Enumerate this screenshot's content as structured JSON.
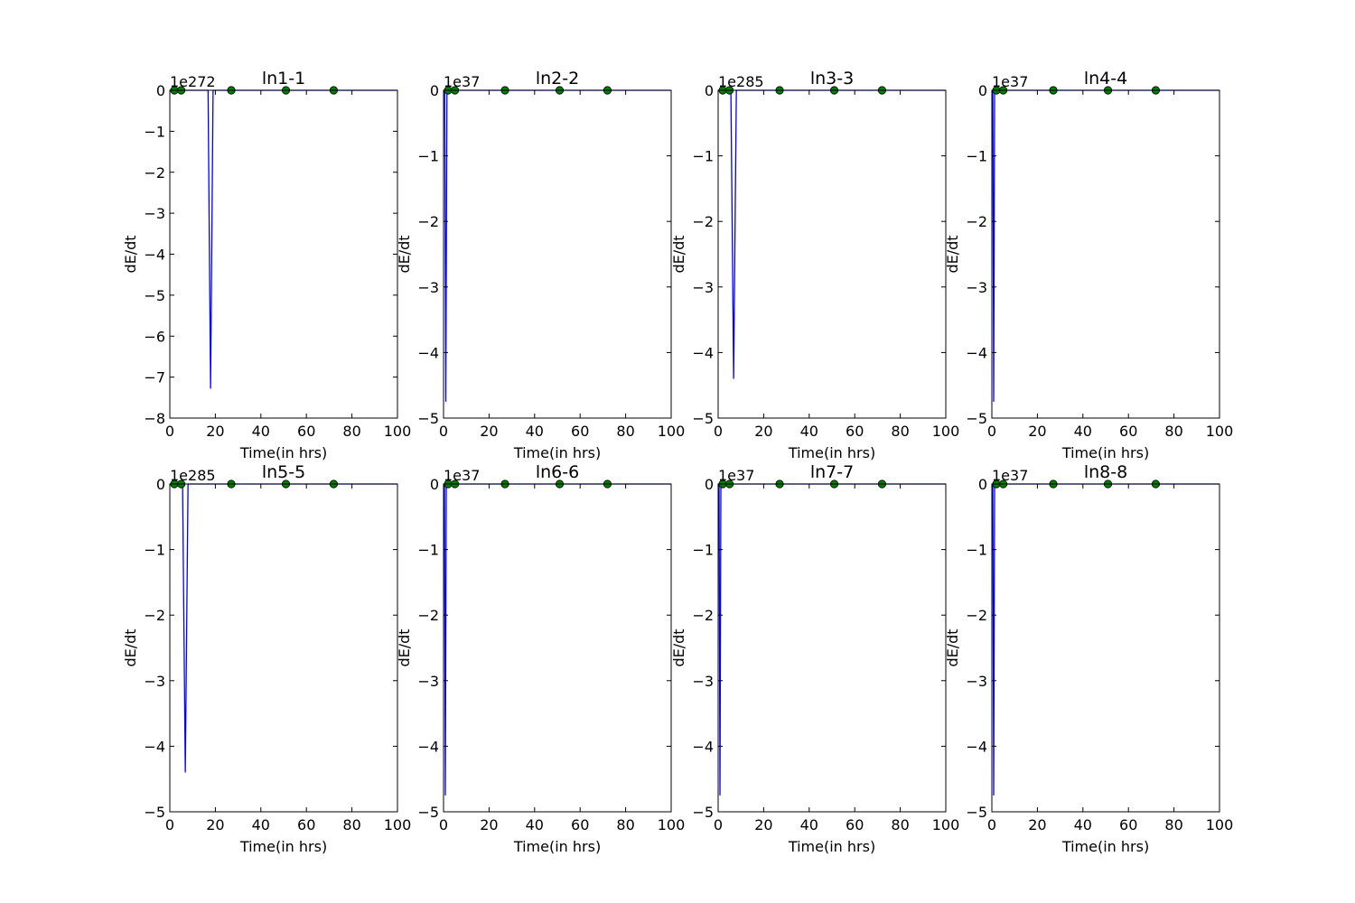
{
  "chart_data": [
    {
      "type": "line",
      "title": "ln1-1",
      "xlabel": "Time(in hrs)",
      "ylabel": "dE/dt",
      "xlim": [
        0,
        100
      ],
      "ylim": [
        -8,
        0
      ],
      "x_ticks": [
        "0",
        "20",
        "40",
        "60",
        "80",
        "100"
      ],
      "y_ticks": [
        "0",
        "−1",
        "−2",
        "−3",
        "−4",
        "−5",
        "−6",
        "−7",
        "−8"
      ],
      "y_offset_text": "1e272",
      "series": [
        {
          "color": "#0000ff",
          "marker": "none",
          "x": [
            0,
            16.8,
            17.9,
            19.0,
            100
          ],
          "y": [
            0,
            0,
            -7.28,
            0,
            0
          ]
        },
        {
          "color": "#008000",
          "marker": "circle",
          "x": [
            2,
            5,
            27,
            51,
            72
          ],
          "y": [
            0,
            0,
            0,
            0,
            0
          ]
        }
      ]
    },
    {
      "type": "line",
      "title": "ln2-2",
      "xlabel": "Time(in hrs)",
      "ylabel": "dE/dt",
      "xlim": [
        0,
        100
      ],
      "ylim": [
        -5,
        0
      ],
      "x_ticks": [
        "0",
        "20",
        "40",
        "60",
        "80",
        "100"
      ],
      "y_ticks": [
        "0",
        "−1",
        "−2",
        "−3",
        "−4",
        "−5"
      ],
      "y_offset_text": "1e37",
      "series": [
        {
          "color": "#0000ff",
          "marker": "none",
          "x": [
            0,
            0.5,
            1.0,
            1.5,
            100
          ],
          "y": [
            0,
            0,
            -4.75,
            0,
            0
          ]
        },
        {
          "color": "#008000",
          "marker": "circle",
          "x": [
            2,
            5,
            27,
            51,
            72
          ],
          "y": [
            0,
            0,
            0,
            0,
            0
          ]
        }
      ]
    },
    {
      "type": "line",
      "title": "ln3-3",
      "xlabel": "Time(in hrs)",
      "ylabel": "dE/dt",
      "xlim": [
        0,
        100
      ],
      "ylim": [
        -5,
        0
      ],
      "x_ticks": [
        "0",
        "20",
        "40",
        "60",
        "80",
        "100"
      ],
      "y_ticks": [
        "0",
        "−1",
        "−2",
        "−3",
        "−4",
        "−5"
      ],
      "y_offset_text": "1e285",
      "series": [
        {
          "color": "#0000ff",
          "marker": "none",
          "x": [
            0,
            5.6,
            6.8,
            8.0,
            100
          ],
          "y": [
            0,
            0,
            -4.4,
            0,
            0
          ]
        },
        {
          "color": "#008000",
          "marker": "circle",
          "x": [
            2,
            5,
            27,
            51,
            72
          ],
          "y": [
            0,
            0,
            0,
            0,
            0
          ]
        }
      ]
    },
    {
      "type": "line",
      "title": "ln4-4",
      "xlabel": "Time(in hrs)",
      "ylabel": "dE/dt",
      "xlim": [
        0,
        100
      ],
      "ylim": [
        -5,
        0
      ],
      "x_ticks": [
        "0",
        "20",
        "40",
        "60",
        "80",
        "100"
      ],
      "y_ticks": [
        "0",
        "−1",
        "−2",
        "−3",
        "−4",
        "−5"
      ],
      "y_offset_text": "1e37",
      "series": [
        {
          "color": "#0000ff",
          "marker": "none",
          "x": [
            0,
            0.4,
            0.8,
            1.2,
            100
          ],
          "y": [
            0,
            0,
            -4.75,
            0,
            0
          ]
        },
        {
          "color": "#008000",
          "marker": "circle",
          "x": [
            2,
            5,
            27,
            51,
            72
          ],
          "y": [
            0,
            0,
            0,
            0,
            0
          ]
        }
      ]
    },
    {
      "type": "line",
      "title": "ln5-5",
      "xlabel": "Time(in hrs)",
      "ylabel": "dE/dt",
      "xlim": [
        0,
        100
      ],
      "ylim": [
        -5,
        0
      ],
      "x_ticks": [
        "0",
        "20",
        "40",
        "60",
        "80",
        "100"
      ],
      "y_ticks": [
        "0",
        "−1",
        "−2",
        "−3",
        "−4",
        "−5"
      ],
      "y_offset_text": "1e285",
      "series": [
        {
          "color": "#0000ff",
          "marker": "none",
          "x": [
            0,
            5.6,
            6.8,
            8.0,
            100
          ],
          "y": [
            0,
            0,
            -4.4,
            0,
            0
          ]
        },
        {
          "color": "#008000",
          "marker": "circle",
          "x": [
            2,
            5,
            27,
            51,
            72
          ],
          "y": [
            0,
            0,
            0,
            0,
            0
          ]
        }
      ]
    },
    {
      "type": "line",
      "title": "ln6-6",
      "xlabel": "Time(in hrs)",
      "ylabel": "dE/dt",
      "xlim": [
        0,
        100
      ],
      "ylim": [
        -5,
        0
      ],
      "x_ticks": [
        "0",
        "20",
        "40",
        "60",
        "80",
        "100"
      ],
      "y_ticks": [
        "0",
        "−1",
        "−2",
        "−3",
        "−4",
        "−5"
      ],
      "y_offset_text": "1e37",
      "series": [
        {
          "color": "#0000ff",
          "marker": "none",
          "x": [
            0,
            0.4,
            0.8,
            1.2,
            100
          ],
          "y": [
            0,
            0,
            -4.75,
            0,
            0
          ]
        },
        {
          "color": "#008000",
          "marker": "circle",
          "x": [
            2,
            5,
            27,
            51,
            72
          ],
          "y": [
            0,
            0,
            0,
            0,
            0
          ]
        }
      ]
    },
    {
      "type": "line",
      "title": "ln7-7",
      "xlabel": "Time(in hrs)",
      "ylabel": "dE/dt",
      "xlim": [
        0,
        100
      ],
      "ylim": [
        -5,
        0
      ],
      "x_ticks": [
        "0",
        "20",
        "40",
        "60",
        "80",
        "100"
      ],
      "y_ticks": [
        "0",
        "−1",
        "−2",
        "−3",
        "−4",
        "−5"
      ],
      "y_offset_text": "1e37",
      "series": [
        {
          "color": "#0000ff",
          "marker": "none",
          "x": [
            0,
            0.4,
            0.8,
            1.2,
            100
          ],
          "y": [
            0,
            0,
            -4.75,
            0,
            0
          ]
        },
        {
          "color": "#008000",
          "marker": "circle",
          "x": [
            2,
            5,
            27,
            51,
            72
          ],
          "y": [
            0,
            0,
            0,
            0,
            0
          ]
        }
      ]
    },
    {
      "type": "line",
      "title": "ln8-8",
      "xlabel": "Time(in hrs)",
      "ylabel": "dE/dt",
      "xlim": [
        0,
        100
      ],
      "ylim": [
        -5,
        0
      ],
      "x_ticks": [
        "0",
        "20",
        "40",
        "60",
        "80",
        "100"
      ],
      "y_ticks": [
        "0",
        "−1",
        "−2",
        "−3",
        "−4",
        "−5"
      ],
      "y_offset_text": "1e37",
      "series": [
        {
          "color": "#0000ff",
          "marker": "none",
          "x": [
            0,
            0.4,
            0.8,
            1.2,
            100
          ],
          "y": [
            0,
            0,
            -4.75,
            0,
            0
          ]
        },
        {
          "color": "#008000",
          "marker": "circle",
          "x": [
            2,
            5,
            27,
            51,
            72
          ],
          "y": [
            0,
            0,
            0,
            0,
            0
          ]
        }
      ]
    }
  ]
}
